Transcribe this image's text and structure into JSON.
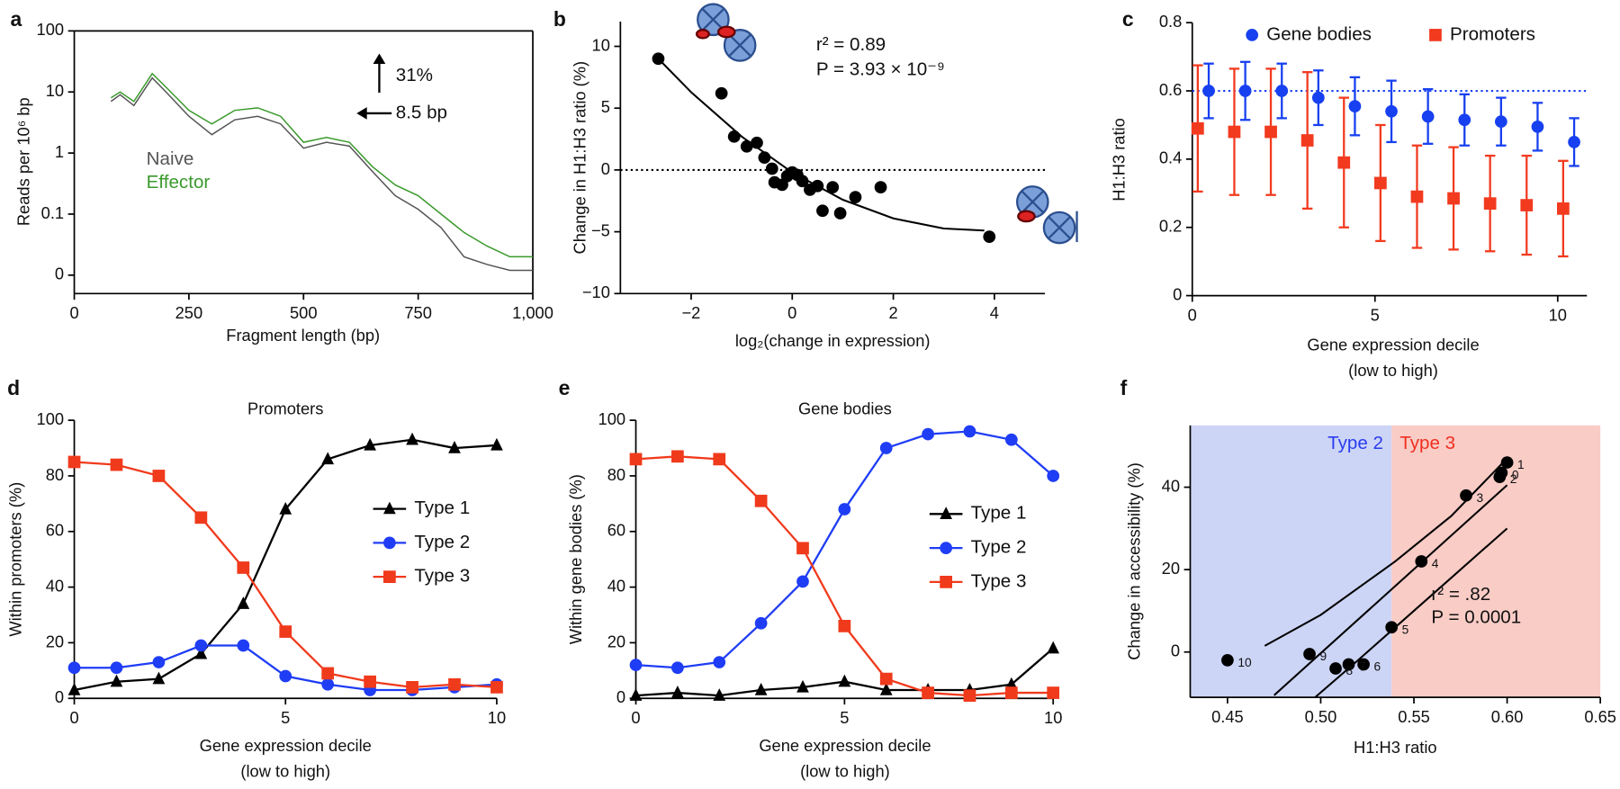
{
  "chart_data": [
    {
      "panel": "a",
      "type": "line",
      "xlabel": [
        "Fragment length (bp)"
      ],
      "ylabel": "Reads per 10⁶ bp",
      "log_y": true,
      "xlim": [
        0,
        1000
      ],
      "ylim": [
        0.005,
        100
      ],
      "xticks": [
        0,
        250,
        500,
        750,
        {
          "value": 1000,
          "label": "1,000"
        }
      ],
      "yticks": [
        100,
        10,
        1,
        0.1,
        {
          "value": 0.01,
          "label": "0"
        }
      ],
      "x": [
        80,
        100,
        130,
        170,
        200,
        250,
        300,
        350,
        400,
        450,
        500,
        550,
        600,
        650,
        700,
        750,
        800,
        850,
        900,
        950,
        1000
      ],
      "series": [
        {
          "name": "Naive",
          "color": "#555555",
          "values": [
            7,
            9,
            6,
            17,
            10,
            4,
            2,
            3.5,
            4,
            3,
            1.2,
            1.5,
            1.3,
            0.5,
            0.2,
            0.12,
            0.06,
            0.02,
            0.015,
            0.012,
            0.012
          ]
        },
        {
          "name": "Effector",
          "color": "#3a9a2c",
          "values": [
            8,
            10,
            7,
            20,
            12,
            5,
            3,
            5,
            5.5,
            4,
            1.5,
            1.8,
            1.5,
            0.6,
            0.3,
            0.2,
            0.1,
            0.05,
            0.03,
            0.02,
            0.02
          ]
        }
      ],
      "annotations": [
        "31%",
        "8.5 bp"
      ]
    },
    {
      "panel": "b",
      "type": "scatter",
      "xlabel": [
        "log₂(change in expression)"
      ],
      "ylabel": "Change in H1:H3 ratio (%)",
      "xlim": [
        -3.4,
        5
      ],
      "ylim": [
        -10,
        12
      ],
      "xticks": [
        {
          "value": -2,
          "label": "−2"
        },
        0,
        2,
        4
      ],
      "yticks": [
        10,
        5,
        0,
        {
          "value": -5,
          "label": "−5"
        },
        {
          "value": -10,
          "label": "−10"
        }
      ],
      "reference_line": {
        "y": 0,
        "color": "#000000"
      },
      "series": [
        {
          "color": "#000000",
          "marker": "circle",
          "x": [
            -2.65,
            -1.4,
            -1.15,
            -0.9,
            -0.7,
            -0.55,
            -0.4,
            -0.35,
            -0.2,
            -0.1,
            0,
            0.1,
            0.2,
            0.35,
            0.5,
            0.6,
            0.8,
            0.95,
            1.25,
            1.75,
            3.9
          ],
          "values": [
            9,
            6.2,
            2.7,
            1.9,
            2.2,
            1,
            0.1,
            -1,
            -1.2,
            -0.5,
            -0.2,
            -0.4,
            -0.9,
            -1.6,
            -1.3,
            -3.3,
            -1.4,
            -3.5,
            -2.2,
            -1.4,
            -5.4
          ]
        }
      ],
      "fit": {
        "x": [
          -2.65,
          -2,
          -1,
          0,
          1,
          2,
          3,
          3.8
        ],
        "y": [
          9,
          6.29,
          2.7,
          -0.2,
          -2.41,
          -3.92,
          -4.74,
          -4.9
        ]
      },
      "annotations": [
        "r² = 0.89",
        "P = 3.93 × 10⁻⁹"
      ]
    },
    {
      "panel": "c",
      "type": "scatter",
      "xlabel": [
        "Gene expression decile",
        "(low to high)"
      ],
      "ylabel": "H1:H3 ratio",
      "xlim": [
        0,
        10.8
      ],
      "ylim": [
        0,
        0.8
      ],
      "xticks": [
        0,
        5,
        10
      ],
      "yticks": [
        0,
        0.2,
        0.4,
        0.6,
        0.8
      ],
      "reference_line": {
        "y": 0.6,
        "color": "#1740f0"
      },
      "series": [
        {
          "name": "Gene bodies",
          "color": "#1740f0",
          "marker": "circle",
          "x": [
            0.45,
            1.45,
            2.45,
            3.45,
            4.45,
            5.45,
            6.45,
            7.45,
            8.45,
            9.45,
            10.45
          ],
          "values": [
            0.6,
            0.6,
            0.6,
            0.58,
            0.555,
            0.54,
            0.525,
            0.515,
            0.51,
            0.495,
            0.45
          ],
          "errors": [
            0.08,
            0.085,
            0.08,
            0.08,
            0.085,
            0.09,
            0.08,
            0.075,
            0.07,
            0.07,
            0.07
          ]
        },
        {
          "name": "Promoters",
          "color": "#f23a1f",
          "marker": "square",
          "x": [
            0.15,
            1.15,
            2.15,
            3.15,
            4.15,
            5.15,
            6.15,
            7.15,
            8.15,
            9.15,
            10.15
          ],
          "values": [
            0.49,
            0.48,
            0.48,
            0.455,
            0.39,
            0.33,
            0.29,
            0.285,
            0.27,
            0.265,
            0.255
          ],
          "errors": [
            0.185,
            0.185,
            0.185,
            0.2,
            0.19,
            0.17,
            0.15,
            0.15,
            0.14,
            0.145,
            0.14
          ]
        }
      ]
    },
    {
      "panel": "d",
      "type": "line",
      "title": "Promoters",
      "xlabel": [
        "Gene expression decile",
        "(low to high)"
      ],
      "ylabel": "Within promoters (%)",
      "xlim": [
        0,
        10
      ],
      "ylim": [
        0,
        100
      ],
      "xticks": [
        0,
        5,
        10
      ],
      "yticks": [
        0,
        20,
        40,
        60,
        80,
        100
      ],
      "x": [
        0,
        1,
        2,
        3,
        4,
        5,
        6,
        7,
        8,
        9,
        10
      ],
      "series": [
        {
          "name": "Type 1",
          "color": "#000000",
          "marker": "triangle",
          "values": [
            3,
            6,
            7,
            16,
            34,
            68,
            86,
            91,
            93,
            90,
            91
          ]
        },
        {
          "name": "Type 2",
          "color": "#1f3df5",
          "marker": "circle",
          "values": [
            11,
            11,
            13,
            19,
            19,
            8,
            5,
            3,
            3,
            4,
            5
          ]
        },
        {
          "name": "Type 3",
          "color": "#f03a1c",
          "marker": "square",
          "values": [
            85,
            84,
            80,
            65,
            47,
            24,
            9,
            6,
            4,
            5,
            4
          ]
        }
      ]
    },
    {
      "panel": "e",
      "type": "line",
      "title": "Gene bodies",
      "xlabel": [
        "Gene expression decile",
        "(low to high)"
      ],
      "ylabel": "Within gene bodies (%)",
      "xlim": [
        0,
        10
      ],
      "ylim": [
        0,
        100
      ],
      "xticks": [
        0,
        5,
        10
      ],
      "yticks": [
        0,
        20,
        40,
        60,
        80,
        100
      ],
      "x": [
        0,
        1,
        2,
        3,
        4,
        5,
        6,
        7,
        8,
        9,
        10
      ],
      "series": [
        {
          "name": "Type 1",
          "color": "#000000",
          "marker": "triangle",
          "values": [
            1,
            2,
            1,
            3,
            4,
            6,
            3,
            3,
            3,
            5,
            18
          ]
        },
        {
          "name": "Type 2",
          "color": "#1f3df5",
          "marker": "circle",
          "values": [
            12,
            11,
            13,
            27,
            42,
            68,
            90,
            95,
            96,
            93,
            80
          ]
        },
        {
          "name": "Type 3",
          "color": "#f03a1c",
          "marker": "square",
          "values": [
            86,
            87,
            86,
            71,
            54,
            26,
            7,
            2,
            1,
            2,
            2
          ]
        }
      ]
    },
    {
      "panel": "f",
      "type": "scatter",
      "xlabel": [
        "H1:H3 ratio"
      ],
      "ylabel": "Change in accessibility (%)",
      "xlim": [
        0.43,
        0.65
      ],
      "ylim": [
        -11,
        55
      ],
      "xticks": [
        0.45,
        {
          "value": 0.5,
          "label": "0.50"
        },
        0.55,
        {
          "value": 0.6,
          "label": "0.60"
        },
        0.65
      ],
      "yticks": [
        0,
        20,
        40
      ],
      "regions": [
        {
          "name": "Type 2",
          "from": 0.43,
          "to": 0.538,
          "color": "#cdd5f6",
          "text_color": "#2a3df0"
        },
        {
          "name": "Type 3",
          "from": 0.538,
          "to": 0.65,
          "color": "#f9ccc6",
          "text_color": "#f03020"
        }
      ],
      "series": [
        {
          "color": "#000000",
          "marker": "circle",
          "x": [
            0.597,
            0.6,
            0.596,
            0.578,
            0.554,
            0.538,
            0.523,
            0.515,
            0.508,
            0.494,
            0.45
          ],
          "values": [
            43.5,
            46,
            42.5,
            38,
            22,
            6,
            -3,
            -3,
            -4,
            -0.5,
            -2
          ],
          "labels": [
            "0",
            "1",
            "2",
            "3",
            "4",
            "5",
            "6",
            "7",
            "8",
            "9",
            "10"
          ]
        }
      ],
      "fit": {
        "x": [
          0.475,
          0.6
        ],
        "y": [
          -10.5,
          40.5
        ]
      },
      "ci_upper": {
        "x": [
          0.47,
          0.5,
          0.54,
          0.57,
          0.6
        ],
        "y": [
          1.5,
          9,
          22,
          33,
          47
        ]
      },
      "ci_lower": {
        "x": [
          0.497,
          0.52,
          0.55,
          0.57,
          0.6
        ],
        "y": [
          -11,
          -2,
          10,
          18,
          30
        ]
      },
      "annotations": [
        "r² = .82",
        "P = 0.0001"
      ]
    }
  ]
}
